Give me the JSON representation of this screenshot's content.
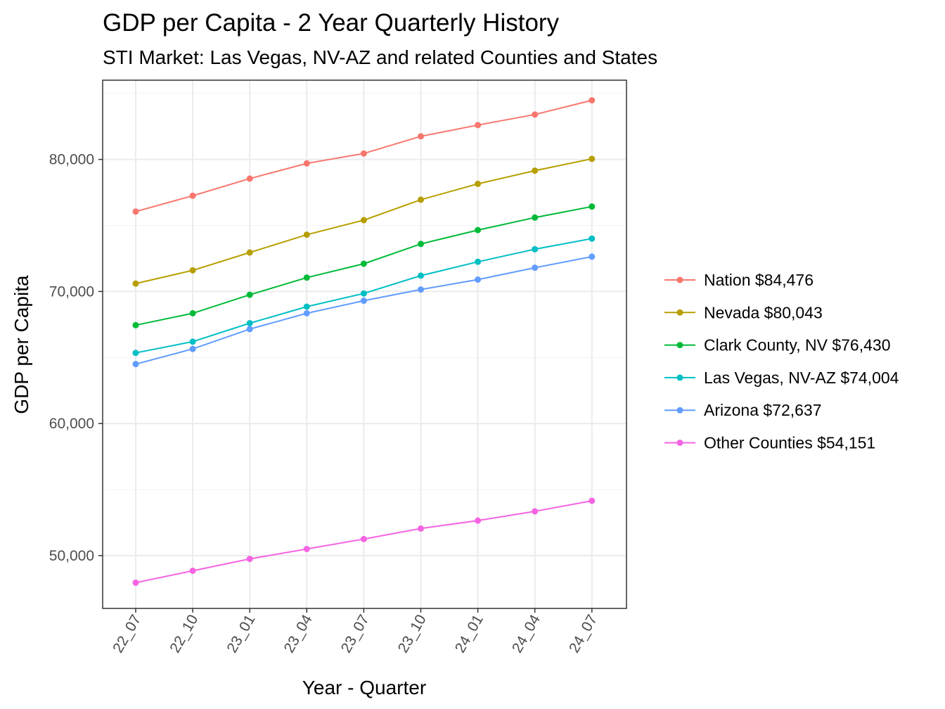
{
  "chart_data": {
    "type": "line",
    "title": "GDP per Capita - 2 Year Quarterly History",
    "subtitle": "STI Market: Las Vegas, NV-AZ and related Counties and States",
    "xlabel": "Year - Quarter",
    "ylabel": "GDP per Capita",
    "categories": [
      "22_07",
      "22_10",
      "23_01",
      "23_04",
      "23_07",
      "23_10",
      "24_01",
      "24_04",
      "24_07"
    ],
    "ylim": [
      46000,
      86000
    ],
    "yticks": [
      50000,
      60000,
      70000,
      80000
    ],
    "ytick_labels": [
      "50,000",
      "60,000",
      "70,000",
      "80,000"
    ],
    "grid": true,
    "legend_position": "right",
    "series": [
      {
        "name": "Nation $84,476",
        "color": "#F8766D",
        "values": [
          76050,
          77250,
          78550,
          79700,
          80450,
          81750,
          82600,
          83400,
          84476
        ]
      },
      {
        "name": "Nevada $80,043",
        "color": "#B79F00",
        "values": [
          70600,
          71600,
          72950,
          74300,
          75400,
          76950,
          78150,
          79150,
          80043
        ]
      },
      {
        "name": "Clark County, NV $76,430",
        "color": "#00BA38",
        "values": [
          67450,
          68350,
          69750,
          71050,
          72100,
          73600,
          74650,
          75600,
          76430
        ]
      },
      {
        "name": "Las Vegas, NV-AZ $74,004",
        "color": "#00BFC4",
        "values": [
          65350,
          66200,
          67600,
          68850,
          69850,
          71200,
          72250,
          73200,
          74004
        ]
      },
      {
        "name": "Arizona $72,637",
        "color": "#619CFF",
        "values": [
          64500,
          65650,
          67150,
          68350,
          69300,
          70150,
          70900,
          71800,
          72637
        ]
      },
      {
        "name": "Other Counties $54,151",
        "color": "#F564E3",
        "values": [
          47950,
          48850,
          49750,
          50500,
          51250,
          52050,
          52650,
          53350,
          54151
        ]
      }
    ]
  }
}
